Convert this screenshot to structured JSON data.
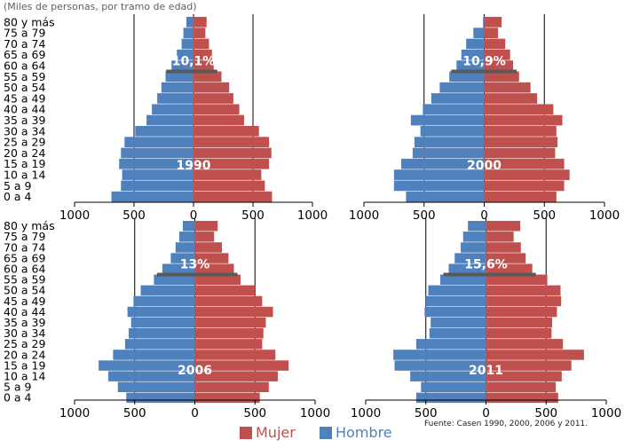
{
  "note": "(Miles de personas, por tramo de edad)",
  "source": "Fuente: Casen 1990, 2000, 2006 y 2011.",
  "colors": {
    "mujer": "#C0504D",
    "hombre": "#4F81BD",
    "marker": "#595959",
    "grid": "#000000"
  },
  "legend": [
    {
      "label": "Mujer",
      "color": "#C0504D"
    },
    {
      "label": "Hombre",
      "color": "#4F81BD"
    }
  ],
  "chart_data": [
    {
      "type": "bar",
      "title": "1990",
      "categories": [
        "80 y más",
        "75 a 79",
        "70 a 74",
        "65 a 69",
        "60 a 64",
        "55 a 59",
        "50 a 54",
        "45 a 49",
        "40 a 44",
        "35 a 39",
        "30 a 34",
        "25 a 29",
        "20 a 24",
        "15 a 19",
        "10 a 14",
        "5 a 9",
        "0 a 4"
      ],
      "series": [
        {
          "name": "Hombre",
          "values": [
            60,
            85,
            100,
            140,
            185,
            235,
            270,
            305,
            350,
            395,
            490,
            580,
            610,
            625,
            600,
            610,
            690
          ]
        },
        {
          "name": "Mujer",
          "values": [
            110,
            100,
            130,
            155,
            170,
            235,
            300,
            335,
            385,
            425,
            550,
            635,
            655,
            635,
            570,
            600,
            660
          ]
        }
      ],
      "xlim": [
        -1000,
        1000
      ],
      "xticks": [
        "1000",
        "500",
        "0",
        "500",
        "1000"
      ],
      "marker": {
        "label": "10,1%",
        "category": "60 a 64"
      }
    },
    {
      "type": "bar",
      "title": "2000",
      "categories": [
        "80 y más",
        "75 a 79",
        "70 a 74",
        "65 a 69",
        "60 a 64",
        "55 a 59",
        "50 a 54",
        "45 a 49",
        "40 a 44",
        "35 a 39",
        "30 a 34",
        "25 a 29",
        "20 a 24",
        "15 a 19",
        "10 a 14",
        "5 a 9",
        "0 a 4"
      ],
      "series": [
        {
          "name": "Hombre",
          "values": [
            10,
            90,
            150,
            190,
            230,
            290,
            370,
            440,
            510,
            610,
            530,
            580,
            595,
            690,
            750,
            750,
            650
          ]
        },
        {
          "name": "Mujer",
          "values": [
            145,
            115,
            175,
            215,
            240,
            290,
            385,
            440,
            575,
            650,
            600,
            610,
            590,
            665,
            710,
            665,
            600
          ]
        }
      ],
      "xlim": [
        -1000,
        1000
      ],
      "xticks": [
        "1000",
        "500",
        "0",
        "500",
        "1000"
      ],
      "marker": {
        "label": "10,9%",
        "category": "60 a 64"
      }
    },
    {
      "type": "bar",
      "title": "2006",
      "categories": [
        "80 y más",
        "75 a 79",
        "70 a 74",
        "65 a 69",
        "60 a 64",
        "55 a 59",
        "50 a 54",
        "45 a 49",
        "40 a 44",
        "35 a 39",
        "30 a 34",
        "25 a 29",
        "20 a 24",
        "15 a 19",
        "10 a 14",
        "5 a 9",
        "0 a 4"
      ],
      "series": [
        {
          "name": "Hombre",
          "values": [
            100,
            130,
            160,
            200,
            270,
            340,
            450,
            510,
            560,
            530,
            550,
            580,
            680,
            800,
            720,
            640,
            570
          ]
        },
        {
          "name": "Mujer",
          "values": [
            190,
            160,
            225,
            280,
            325,
            380,
            500,
            560,
            650,
            590,
            570,
            560,
            670,
            780,
            690,
            615,
            540
          ]
        }
      ],
      "xlim": [
        -1000,
        1000
      ],
      "xticks": [
        "1000",
        "500",
        "0",
        "500",
        "1000"
      ],
      "marker": {
        "label": "13%",
        "category": "60 a 64"
      }
    },
    {
      "type": "bar",
      "title": "2011",
      "categories": [
        "80 y más",
        "75 a 79",
        "70 a 74",
        "65 a 69",
        "60 a 64",
        "55 a 59",
        "50 a 54",
        "45 a 49",
        "40 a 44",
        "35 a 39",
        "30 a 34",
        "25 a 29",
        "20 a 24",
        "15 a 19",
        "10 a 14",
        "5 a 9",
        "0 a 4"
      ],
      "series": [
        {
          "name": "Hombre",
          "values": [
            150,
            190,
            210,
            260,
            310,
            380,
            480,
            500,
            510,
            460,
            470,
            580,
            770,
            760,
            630,
            540,
            580
          ]
        },
        {
          "name": "Mujer",
          "values": [
            285,
            230,
            290,
            330,
            385,
            510,
            620,
            625,
            590,
            550,
            545,
            640,
            815,
            710,
            630,
            580,
            600
          ]
        }
      ],
      "xlim": [
        -1000,
        1000
      ],
      "xticks": [
        "1000",
        "500",
        "0",
        "500",
        "1000"
      ],
      "marker": {
        "label": "15,6%",
        "category": "60 a 64"
      }
    }
  ]
}
